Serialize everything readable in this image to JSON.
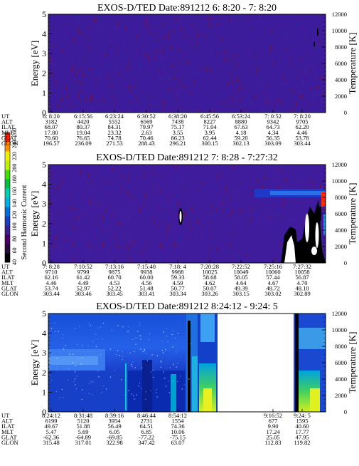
{
  "colorbar": {
    "label": "Second Harmonic Current",
    "ticks": [
      "40",
      "60",
      "80",
      "100",
      "120",
      "140",
      "160",
      "180",
      "200",
      "220",
      "240",
      "260"
    ],
    "colors": [
      "#000000",
      "#2a0a3a",
      "#4b0068",
      "#3d2090",
      "#1a40c0",
      "#0070e0",
      "#00b0e0",
      "#00d0b0",
      "#00c040",
      "#40e000",
      "#c0f000",
      "#f0f000",
      "#ff9000",
      "#ff2000"
    ]
  },
  "ephem_labels": [
    "UT",
    "ALT",
    "ILAT",
    "MLT",
    "GLAT",
    "GLON"
  ],
  "panels": [
    {
      "title": "EXOS-D/TED   Date:891212  6: 8:20 - 7: 8:20",
      "ylabel": "Energy [eV]",
      "y2label": "Temperature [K]",
      "yticks": [
        "0",
        "1",
        "2",
        "3",
        "4",
        "5"
      ],
      "y2ticks": [
        "0",
        "2000",
        "4000",
        "6000",
        "8000",
        "10000",
        "12000"
      ],
      "style": "purple",
      "columns": [
        [
          "6: 8:20",
          "3182",
          "68.07",
          "17.80",
          "70.60",
          "196.57"
        ],
        [
          "6:15:56",
          "4420",
          "80.37",
          "19.04",
          "76.65",
          "236.09"
        ],
        [
          "6:23:24",
          "5552",
          "84.31",
          "23.32",
          "74.78",
          "271.53"
        ],
        [
          "6:30:52",
          "6569",
          "79.97",
          "2.63",
          "70.46",
          "288.43"
        ],
        [
          "6:38:20",
          "7438",
          "75.17",
          "3.55",
          "66.23",
          "296.21"
        ],
        [
          "6:45:56",
          "8227",
          "71.04",
          "3.95",
          "62.44",
          "300.15"
        ],
        [
          "6:53:24",
          "8880",
          "67.63",
          "4.18",
          "59.20",
          "302.13"
        ],
        [
          "7: 0:52",
          "9342",
          "64.73",
          "4.34",
          "56.35",
          "303.09"
        ],
        [
          "7: 8:20",
          "9705",
          "62.20",
          "4.46",
          "53.78",
          "303.44"
        ]
      ]
    },
    {
      "title": "EXOS-D/TED   Date:891212  7: 8:28 - 7:27:32",
      "ylabel": "Energy [eV]",
      "y2label": "Temperature [K]",
      "yticks": [
        "0",
        "1",
        "2",
        "3",
        "4",
        "5"
      ],
      "y2ticks": [
        "0",
        "2000",
        "4000",
        "6000",
        "8000",
        "10000",
        "12000"
      ],
      "style": "purple2",
      "columns": [
        [
          "7: 8:28",
          "9710",
          "62.16",
          "4.46",
          "53.74",
          "303.44"
        ],
        [
          "7:10:52",
          "9799",
          "61.42",
          "4.49",
          "52.97",
          "303.46"
        ],
        [
          "7:13:16",
          "9875",
          "60.70",
          "4.53",
          "52.22",
          "303.45"
        ],
        [
          "7:15:40",
          "9938",
          "60.00",
          "4.56",
          "51.48",
          "303.41"
        ],
        [
          "7:18: 4",
          "9988",
          "59.33",
          "4.59",
          "50.77",
          "303.34"
        ],
        [
          "7:20:28",
          "10025",
          "58.68",
          "4.62",
          "50.07",
          "303.26"
        ],
        [
          "7:22:52",
          "10049",
          "58.05",
          "4.64",
          "49.39",
          "303.15"
        ],
        [
          "7:25:16",
          "10060",
          "57.44",
          "4.67",
          "48.72",
          "303.02"
        ],
        [
          "7:27:32",
          "10058",
          "56.87",
          "4.70",
          "48.10",
          "302.89"
        ]
      ]
    },
    {
      "title": "EXOS-D/TED   Date:891212  8:24:12 - 9:24: 5",
      "ylabel": "Energy [eV]",
      "y2label": "Temperature [K]",
      "yticks": [
        "0",
        "1",
        "2",
        "3",
        "4",
        "5"
      ],
      "y2ticks": [
        "0",
        "2000",
        "4000",
        "6000",
        "8000",
        "10000",
        "12000"
      ],
      "style": "blue",
      "columns": [
        [
          "8:24:12",
          "6199",
          "49.67",
          "5.47",
          "-62.36",
          "315.48"
        ],
        [
          "8:31:48",
          "5120",
          "51.88",
          "5.69",
          "-64.89",
          "317.01"
        ],
        [
          "8:39:16",
          "3954",
          "56.49",
          "6.05",
          "-69.85",
          "322.98"
        ],
        [
          "8:46:44",
          "2731",
          "64.51",
          "6.85",
          "-77.22",
          "347.42"
        ],
        [
          "8:54:12",
          "1554",
          "74.36",
          "10.06",
          "-75.15",
          "63.07"
        ],
        [
          "",
          "",
          "",
          "",
          "",
          ""
        ],
        [
          "",
          "",
          "",
          "",
          "",
          ""
        ],
        [
          "9:16:52",
          "677",
          "9.90",
          "17.24",
          "25.05",
          "112.83"
        ],
        [
          "9:24: 5",
          "1595",
          "40.60",
          "17.77",
          "47.95",
          "119.82"
        ]
      ]
    }
  ],
  "chart_data": [
    {
      "type": "heatmap",
      "title": "EXOS-D/TED   Date:891212  6: 8:20 - 7: 8:20",
      "xlabel": "UT",
      "ylabel": "Energy [eV]",
      "y2label": "Temperature [K]",
      "xlim": [
        "6: 8:20",
        "7: 8:20"
      ],
      "ylim": [
        0,
        5
      ],
      "y2lim": [
        0,
        12000
      ],
      "colorbar_range": [
        40,
        260
      ]
    },
    {
      "type": "heatmap",
      "title": "EXOS-D/TED   Date:891212  7: 8:28 - 7:27:32",
      "xlabel": "UT",
      "ylabel": "Energy [eV]",
      "y2label": "Temperature [K]",
      "xlim": [
        "7: 8:28",
        "7:27:32"
      ],
      "ylim": [
        0,
        5
      ],
      "y2lim": [
        0,
        12000
      ],
      "colorbar_label": "Second Harmonic Current",
      "colorbar_range": [
        40,
        260
      ]
    },
    {
      "type": "heatmap",
      "title": "EXOS-D/TED   Date:891212  8:24:12 - 9:24: 5",
      "xlabel": "UT",
      "ylabel": "Energy [eV]",
      "y2label": "Temperature [K]",
      "xlim": [
        "8:24:12",
        "9:24: 5"
      ],
      "ylim": [
        0,
        5
      ],
      "y2lim": [
        0,
        12000
      ],
      "colorbar_range": [
        40,
        260
      ]
    }
  ]
}
